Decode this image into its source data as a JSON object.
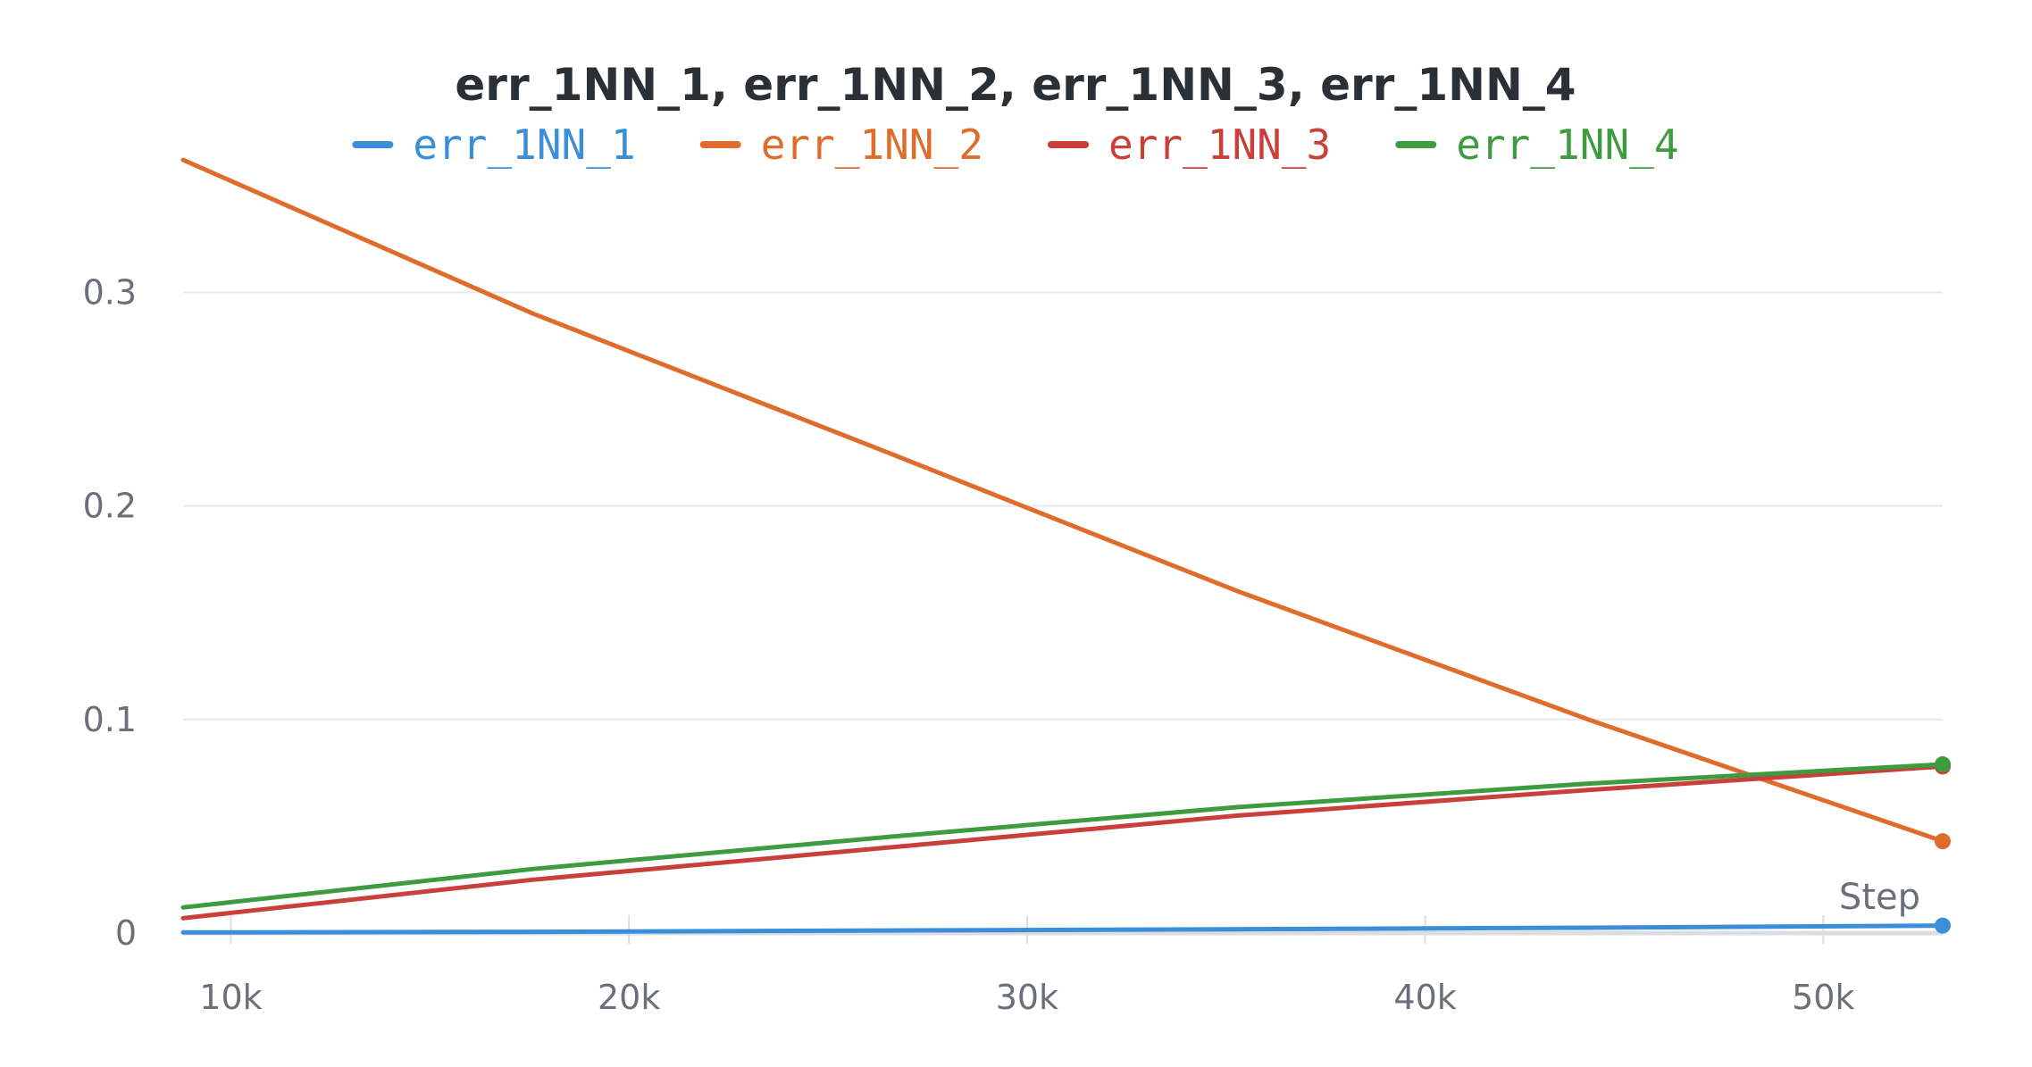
{
  "chart_data": {
    "type": "line",
    "title": "err_1NN_1, err_1NN_2, err_1NN_3, err_1NN_4",
    "xlabel": "Step",
    "ylabel": "",
    "xlim": [
      8800,
      53000
    ],
    "ylim": [
      0,
      0.37
    ],
    "x_ticks": [
      10000,
      20000,
      30000,
      40000,
      50000
    ],
    "x_tick_labels": [
      "10k",
      "20k",
      "30k",
      "40k",
      "50k"
    ],
    "y_ticks": [
      0,
      0.1,
      0.2,
      0.3
    ],
    "y_tick_labels": [
      "0",
      "0.1",
      "0.2",
      "0.3"
    ],
    "grid": true,
    "legend_position": "top",
    "series": [
      {
        "name": "err_1NN_1",
        "color": "#3b8fd9",
        "x": [
          8800,
          17600,
          26500,
          35300,
          44100,
          53000
        ],
        "y": [
          0.0003,
          0.0006,
          0.0012,
          0.0018,
          0.0025,
          0.0035
        ]
      },
      {
        "name": "err_1NN_2",
        "color": "#e06c2c",
        "x": [
          8800,
          17600,
          26500,
          35300,
          44100,
          53000
        ],
        "y": [
          0.362,
          0.29,
          0.225,
          0.16,
          0.1,
          0.043
        ]
      },
      {
        "name": "err_1NN_3",
        "color": "#c9403a",
        "x": [
          8800,
          17600,
          26500,
          35300,
          44100,
          53000
        ],
        "y": [
          0.007,
          0.025,
          0.04,
          0.055,
          0.067,
          0.078
        ]
      },
      {
        "name": "err_1NN_4",
        "color": "#3e9b3f",
        "x": [
          8800,
          17600,
          26500,
          35300,
          44100,
          53000
        ],
        "y": [
          0.012,
          0.03,
          0.045,
          0.059,
          0.07,
          0.079
        ]
      }
    ]
  }
}
